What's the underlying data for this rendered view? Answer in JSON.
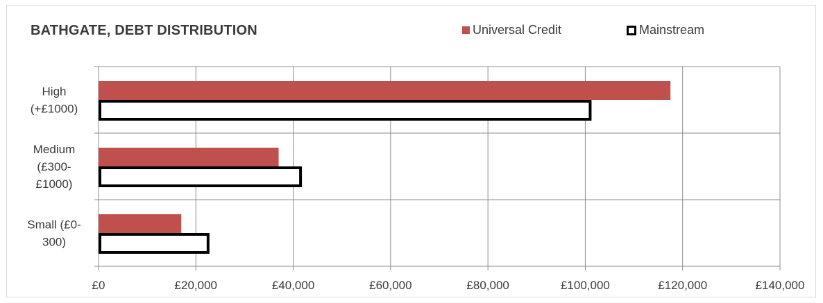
{
  "chart_data": {
    "type": "bar",
    "orientation": "horizontal",
    "title": "BATHGATE, DEBT DISTRIBUTION",
    "categories": [
      [
        "High",
        "(+£1000)"
      ],
      [
        "Medium",
        "(£300-",
        "£1000)"
      ],
      [
        "Small (£0-",
        "300)"
      ]
    ],
    "series": [
      {
        "name": "Universal Credit",
        "values": [
          117500,
          37000,
          17000
        ],
        "color": "#c0504d"
      },
      {
        "name": "Mainstream",
        "values": [
          101000,
          41500,
          22500
        ],
        "color": "#ffffff",
        "border": "#000000"
      }
    ],
    "xlim": [
      0,
      140000
    ],
    "xticks": [
      "£0",
      "£20,000",
      "£40,000",
      "£60,000",
      "£80,000",
      "£100,000",
      "£120,000",
      "£140,000"
    ],
    "grid": true,
    "legend_position": "top-right"
  }
}
